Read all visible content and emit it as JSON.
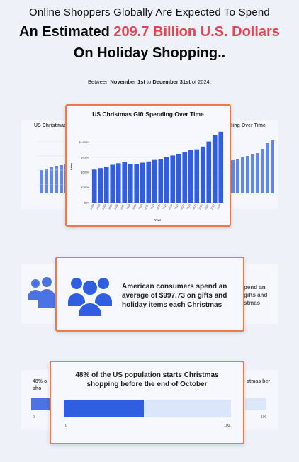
{
  "header": {
    "line1": "Online Shoppers Globally Are Expected To Spend",
    "line2_prefix": "An Estimated ",
    "line2_accent": "209.7 Billion U.S. Dollars",
    "line3": "On Holiday Shopping..",
    "sub_prefix": "Between ",
    "sub_start": "November 1st",
    "sub_mid": " to ",
    "sub_end": "December 31st",
    "sub_suffix": " of 2024."
  },
  "ghost_left_title": "US Christmas",
  "ghost_right_title": "ding Over Time",
  "ghost_mid_right_text": "pend an gifts and stmas",
  "ghost_bottom_left_text": "48% o sho",
  "ghost_bottom_right_text": "stmas ber",
  "ghost_bottom_left_tick": "0",
  "ghost_bottom_right_tick": "100",
  "colors": {
    "accent": "#e84355",
    "bar": "#2f5ee0",
    "card_border": "#ef7a47",
    "bar_track": "#dbe6fb"
  },
  "chart_data": {
    "type": "bar",
    "title": "US Christmas Gift Spending Over Time",
    "xlabel": "Year",
    "ylabel": "Sales",
    "categories": [
      "2002",
      "2003",
      "2004",
      "2005",
      "2006",
      "2007",
      "2008",
      "2009",
      "2010",
      "2011",
      "2012",
      "2013",
      "2014",
      "2015",
      "2016",
      "2017",
      "2018",
      "2019",
      "2020",
      "2021",
      "2022",
      "2023"
    ],
    "values": [
      546,
      570,
      595,
      625,
      650,
      668,
      640,
      632,
      660,
      680,
      705,
      720,
      750,
      778,
      805,
      835,
      865,
      880,
      925,
      1010,
      1120,
      1170
    ],
    "y_ticks": [
      "$0K",
      "$250K",
      "$500K",
      "$750K",
      "$1,000K"
    ],
    "ylim": [
      0,
      1250
    ]
  },
  "consumer_card": {
    "icon": "group-icon",
    "text": "American consumers spend an average of $997.73 on gifts and holiday items each Christmas"
  },
  "percent_card": {
    "title": "48% of the US population starts Christmas shopping before the end of October",
    "value_percent": 48,
    "tick_min": "0",
    "tick_max": "100"
  }
}
